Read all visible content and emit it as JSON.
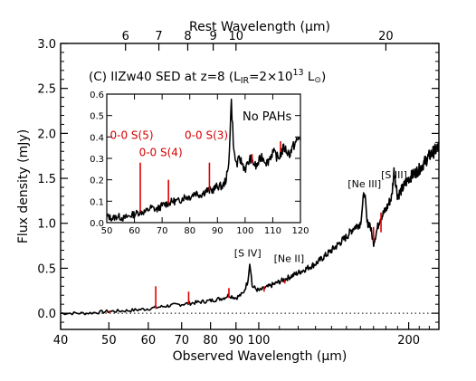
{
  "chart_data": [
    {
      "type": "line",
      "x_scale": "log",
      "title_main": "(C)  IIZw40 SED at z=8 (L",
      "title_sub": "IR",
      "title_mid": "=2×10",
      "title_sup": "13",
      "title_end": " L",
      "title_sun": "⊙",
      "title_close": ")",
      "xlabel": "Observed Wavelength (μm)",
      "ylabel": "Flux density (mJy)",
      "top_xlabel": "Rest Wavelength (μm)",
      "xlim": [
        40,
        230
      ],
      "ylim": [
        -0.18,
        3.0
      ],
      "x_ticks": [
        40,
        50,
        60,
        70,
        80,
        90,
        100,
        200
      ],
      "x_tick_labels": [
        "40",
        "50",
        "60",
        "70",
        "80",
        "90",
        "100",
        "200"
      ],
      "y_ticks": [
        0.0,
        0.5,
        1.0,
        1.5,
        2.0,
        2.5,
        3.0
      ],
      "y_tick_labels": [
        "0.0",
        "0.5",
        "1.0",
        "1.5",
        "2.0",
        "2.5",
        "3.0"
      ],
      "top_ticks_rest": [
        6,
        7,
        8,
        9,
        10,
        20
      ],
      "top_tick_labels": [
        "6",
        "7",
        "8",
        "9",
        "10",
        "20"
      ],
      "redshift": 8,
      "zero_line": "dotted",
      "series": [
        {
          "color": "#000000",
          "x": [
            40,
            45,
            50,
            55,
            60,
            65,
            70,
            75,
            80,
            85,
            87,
            90,
            93,
            95,
            96,
            97,
            100,
            105,
            110,
            115,
            120,
            130,
            140,
            150,
            155,
            160,
            163,
            165,
            167,
            170,
            175,
            180,
            185,
            187,
            190,
            195,
            200,
            210,
            220,
            230
          ],
          "y": [
            0.0,
            0.0,
            0.02,
            0.03,
            0.05,
            0.08,
            0.1,
            0.12,
            0.14,
            0.17,
            0.2,
            0.17,
            0.22,
            0.35,
            0.58,
            0.3,
            0.25,
            0.3,
            0.35,
            0.4,
            0.45,
            0.55,
            0.7,
            0.85,
            0.95,
            1.0,
            1.37,
            1.0,
            1.0,
            0.78,
            1.05,
            1.15,
            1.3,
            1.6,
            1.3,
            1.4,
            1.5,
            1.6,
            1.75,
            1.85
          ]
        }
      ],
      "red_markers": [
        {
          "x": 50.2,
          "y0": 0.0,
          "y1": 0.03
        },
        {
          "x": 62.1,
          "y0": 0.05,
          "y1": 0.3
        },
        {
          "x": 72.3,
          "y0": 0.1,
          "y1": 0.24
        },
        {
          "x": 87.1,
          "y0": 0.17,
          "y1": 0.28
        },
        {
          "x": 102.5,
          "y0": 0.24,
          "y1": 0.3
        },
        {
          "x": 112.8,
          "y0": 0.33,
          "y1": 0.37
        },
        {
          "x": 170.0,
          "y0": 0.8,
          "y1": 0.96
        },
        {
          "x": 176.0,
          "y0": 0.9,
          "y1": 1.12
        }
      ],
      "annotations": [
        {
          "text": "[S IV]",
          "x": 95,
          "y": 0.63
        },
        {
          "text": "[Ne II]",
          "x": 115,
          "y": 0.57
        },
        {
          "text": "[Ne III]",
          "x": 163,
          "y": 1.4
        },
        {
          "text": "[S III]",
          "x": 187,
          "y": 1.5
        }
      ]
    },
    {
      "type": "line",
      "x_scale": "linear",
      "xlim": [
        50,
        120
      ],
      "ylim": [
        0,
        0.6
      ],
      "x_ticks": [
        50,
        60,
        70,
        80,
        90,
        100,
        110,
        120
      ],
      "x_tick_labels": [
        "50",
        "60",
        "70",
        "80",
        "90",
        "100",
        "110",
        "120"
      ],
      "y_ticks": [
        0.0,
        0.1,
        0.2,
        0.3,
        0.4,
        0.5,
        0.6
      ],
      "y_tick_labels": [
        "0.0",
        "0.1",
        "0.2",
        "0.3",
        "0.4",
        "0.5",
        "0.6"
      ],
      "note": "No PAHs",
      "series": [
        {
          "color": "#000000",
          "x": [
            50,
            52,
            54,
            56,
            58,
            60,
            62,
            64,
            66,
            68,
            70,
            72,
            74,
            76,
            78,
            80,
            82,
            84,
            86,
            88,
            90,
            92,
            93,
            94,
            95,
            96,
            97,
            98,
            100,
            102,
            104,
            106,
            108,
            110,
            112,
            114,
            116,
            118,
            120
          ],
          "y": [
            0.03,
            0.02,
            0.03,
            0.02,
            0.03,
            0.04,
            0.05,
            0.05,
            0.07,
            0.06,
            0.08,
            0.09,
            0.1,
            0.1,
            0.12,
            0.12,
            0.14,
            0.13,
            0.15,
            0.15,
            0.17,
            0.17,
            0.2,
            0.25,
            0.57,
            0.32,
            0.27,
            0.3,
            0.25,
            0.3,
            0.26,
            0.31,
            0.28,
            0.33,
            0.3,
            0.35,
            0.32,
            0.37,
            0.4
          ]
        }
      ],
      "red_markers": [
        {
          "x": 62.1,
          "y0": 0.05,
          "y1": 0.28
        },
        {
          "x": 72.3,
          "y0": 0.09,
          "y1": 0.2
        },
        {
          "x": 87.1,
          "y0": 0.15,
          "y1": 0.28
        },
        {
          "x": 102.5,
          "y0": 0.28,
          "y1": 0.32
        },
        {
          "x": 112.8,
          "y0": 0.33,
          "y1": 0.38
        }
      ],
      "line_labels": [
        {
          "text": "0-0 S(5)",
          "x": 59,
          "y": 0.39
        },
        {
          "text": "0-0 S(4)",
          "x": 69.5,
          "y": 0.31
        },
        {
          "text": "0-0 S(3)",
          "x": 86,
          "y": 0.39
        }
      ]
    }
  ]
}
